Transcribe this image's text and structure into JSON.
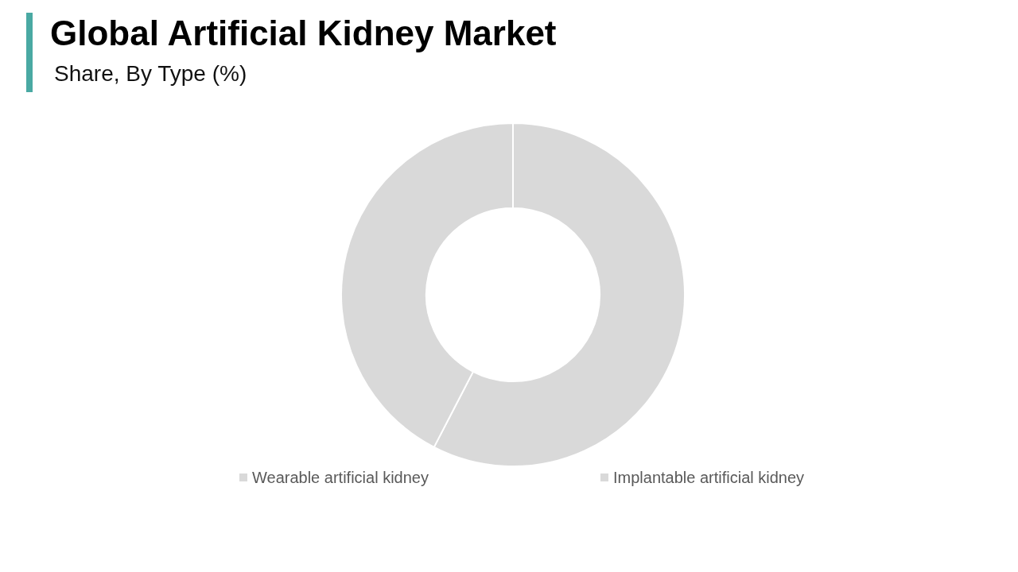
{
  "chart_data": {
    "type": "donut",
    "title": "Global Artificial Kidney Market",
    "subtitle": "Share, By Type (%)",
    "categories": [
      "Wearable artificial kidney",
      "Implantable artificial kidney"
    ],
    "values": [
      57.6,
      42.4
    ],
    "colors": [
      "#d9d9d9",
      "#d9d9d9"
    ],
    "legend": "bottom"
  }
}
